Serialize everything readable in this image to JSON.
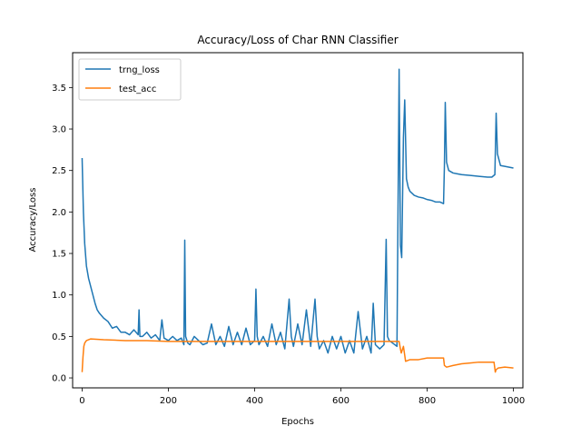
{
  "chart_data": {
    "type": "line",
    "title": "Accuracy/Loss of Char RNN Classifier",
    "xlabel": "Epochs",
    "ylabel": "Accuracy/Loss",
    "xlim": [
      -22,
      1022
    ],
    "ylim": [
      -0.12,
      3.92
    ],
    "xticks": [
      0,
      200,
      400,
      600,
      800,
      1000
    ],
    "yticks": [
      0.0,
      0.5,
      1.0,
      1.5,
      2.0,
      2.5,
      3.0,
      3.5
    ],
    "ytick_labels": [
      "0.0",
      "0.5",
      "1.0",
      "1.5",
      "2.0",
      "2.5",
      "3.0",
      "3.5"
    ],
    "grid": false,
    "legend_position": "top-left",
    "series": [
      {
        "name": "trng_loss",
        "color": "#1f77b4",
        "x": [
          0,
          3,
          6,
          10,
          15,
          20,
          25,
          30,
          35,
          40,
          45,
          50,
          60,
          70,
          80,
          90,
          100,
          110,
          120,
          130,
          132,
          134,
          140,
          150,
          160,
          170,
          180,
          185,
          190,
          200,
          210,
          220,
          230,
          236,
          238,
          240,
          245,
          250,
          260,
          270,
          280,
          290,
          300,
          310,
          320,
          330,
          340,
          350,
          360,
          370,
          380,
          390,
          400,
          403,
          406,
          410,
          420,
          430,
          440,
          450,
          460,
          470,
          480,
          485,
          490,
          500,
          510,
          520,
          530,
          540,
          545,
          550,
          560,
          570,
          580,
          590,
          600,
          610,
          620,
          630,
          640,
          650,
          660,
          670,
          675,
          680,
          690,
          700,
          705,
          708,
          712,
          720,
          730,
          735,
          738,
          741,
          745,
          748,
          752,
          756,
          760,
          770,
          780,
          790,
          800,
          810,
          820,
          830,
          838,
          840,
          842,
          845,
          850,
          860,
          870,
          880,
          900,
          920,
          940,
          950,
          957,
          960,
          963,
          970,
          980,
          1000
        ],
        "y": [
          2.65,
          2.0,
          1.62,
          1.35,
          1.2,
          1.1,
          1.0,
          0.9,
          0.82,
          0.78,
          0.75,
          0.72,
          0.68,
          0.6,
          0.62,
          0.55,
          0.55,
          0.52,
          0.58,
          0.52,
          0.82,
          0.5,
          0.5,
          0.55,
          0.48,
          0.52,
          0.45,
          0.7,
          0.48,
          0.45,
          0.5,
          0.45,
          0.48,
          0.4,
          1.66,
          0.5,
          0.42,
          0.4,
          0.5,
          0.45,
          0.4,
          0.42,
          0.65,
          0.4,
          0.5,
          0.38,
          0.62,
          0.4,
          0.55,
          0.4,
          0.6,
          0.4,
          0.45,
          1.07,
          0.5,
          0.4,
          0.5,
          0.38,
          0.65,
          0.4,
          0.55,
          0.35,
          0.95,
          0.5,
          0.38,
          0.65,
          0.4,
          0.82,
          0.38,
          0.95,
          0.5,
          0.35,
          0.45,
          0.3,
          0.5,
          0.35,
          0.5,
          0.3,
          0.45,
          0.3,
          0.8,
          0.35,
          0.5,
          0.3,
          0.9,
          0.4,
          0.35,
          0.4,
          1.67,
          0.5,
          0.45,
          0.42,
          0.38,
          3.72,
          1.6,
          1.45,
          2.9,
          3.35,
          2.4,
          2.3,
          2.25,
          2.2,
          2.18,
          2.17,
          2.15,
          2.14,
          2.12,
          2.12,
          2.1,
          2.55,
          3.32,
          2.6,
          2.5,
          2.47,
          2.46,
          2.45,
          2.44,
          2.43,
          2.42,
          2.42,
          2.45,
          3.19,
          2.7,
          2.56,
          2.55,
          2.53
        ]
      },
      {
        "name": "test_acc",
        "color": "#ff7f0e",
        "x": [
          0,
          2,
          4,
          6,
          10,
          20,
          50,
          100,
          150,
          200,
          250,
          300,
          400,
          500,
          600,
          700,
          735,
          738,
          740,
          745,
          750,
          760,
          780,
          800,
          820,
          838,
          840,
          845,
          860,
          880,
          900,
          920,
          940,
          955,
          958,
          960,
          965,
          980,
          1000
        ],
        "y": [
          0.07,
          0.25,
          0.38,
          0.42,
          0.45,
          0.47,
          0.46,
          0.45,
          0.45,
          0.44,
          0.44,
          0.44,
          0.44,
          0.44,
          0.44,
          0.44,
          0.44,
          0.35,
          0.3,
          0.38,
          0.2,
          0.22,
          0.22,
          0.24,
          0.24,
          0.24,
          0.15,
          0.13,
          0.15,
          0.17,
          0.18,
          0.19,
          0.19,
          0.19,
          0.07,
          0.1,
          0.12,
          0.13,
          0.12
        ]
      }
    ]
  }
}
